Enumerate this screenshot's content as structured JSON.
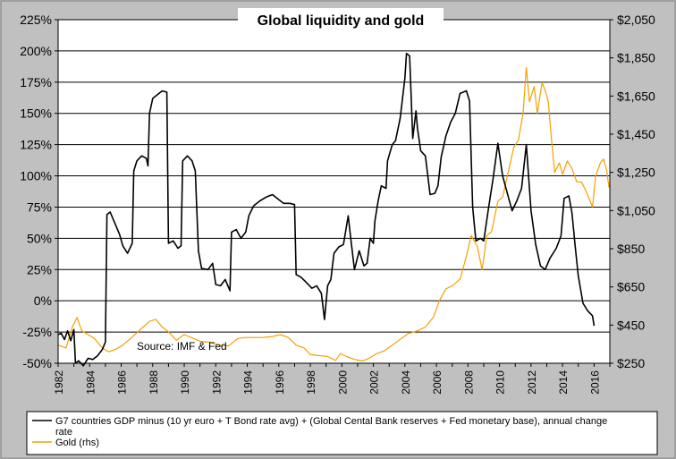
{
  "chart_data": {
    "type": "line",
    "title": "Global liquidity and gold",
    "source_note": "Source: IMF & Fed",
    "x_ticks": [
      "1982",
      "1984",
      "1986",
      "1988",
      "1990",
      "1992",
      "1994",
      "1996",
      "1998",
      "2000",
      "2002",
      "2004",
      "2006",
      "2008",
      "2010",
      "2012",
      "2014",
      "2016"
    ],
    "xlim": [
      1982,
      2017
    ],
    "left_axis": {
      "ylim": [
        -50,
        225
      ],
      "ticks": [
        -50,
        -25,
        0,
        25,
        50,
        75,
        100,
        125,
        150,
        175,
        200,
        225
      ],
      "tick_labels": [
        "-50%",
        "-25%",
        "0%",
        "25%",
        "50%",
        "75%",
        "100%",
        "125%",
        "150%",
        "175%",
        "200%",
        "225%"
      ]
    },
    "right_axis": {
      "ylim": [
        250,
        2050
      ],
      "ticks": [
        250,
        450,
        650,
        850,
        1050,
        1250,
        1450,
        1650,
        1850,
        2050
      ],
      "tick_labels": [
        "$250",
        "$450",
        "$650",
        "$850",
        "$1,050",
        "$1,250",
        "$1,450",
        "$1,650",
        "$1,850",
        "$2,050"
      ]
    },
    "colors": {
      "liquidity": "#000000",
      "gold": "#f5a000",
      "grid": "#000000",
      "plot_bg": "#ffffff",
      "frame_bg": "#c0c0c0"
    },
    "series": [
      {
        "name": "G7 countries GDP minus (10 yr euro + T Bond rate avg) + (Global Cental Bank reserves + Fed monetary base), annual change rate",
        "axis": "left",
        "points": [
          [
            1982.0,
            -27
          ],
          [
            1982.2,
            -26
          ],
          [
            1982.4,
            -31
          ],
          [
            1982.6,
            -24
          ],
          [
            1982.8,
            -32
          ],
          [
            1983.0,
            -23
          ],
          [
            1983.1,
            -50
          ],
          [
            1983.3,
            -48
          ],
          [
            1983.6,
            -52
          ],
          [
            1983.9,
            -46
          ],
          [
            1984.2,
            -47
          ],
          [
            1984.5,
            -44
          ],
          [
            1984.8,
            -39
          ],
          [
            1985.0,
            -33
          ],
          [
            1985.1,
            69
          ],
          [
            1985.3,
            71
          ],
          [
            1985.6,
            62
          ],
          [
            1985.9,
            53
          ],
          [
            1986.1,
            44
          ],
          [
            1986.4,
            38
          ],
          [
            1986.7,
            46
          ],
          [
            1986.8,
            104
          ],
          [
            1987.0,
            112
          ],
          [
            1987.3,
            116
          ],
          [
            1987.6,
            114
          ],
          [
            1987.7,
            108
          ],
          [
            1987.8,
            150
          ],
          [
            1988.0,
            162
          ],
          [
            1988.3,
            165
          ],
          [
            1988.6,
            168
          ],
          [
            1988.9,
            167
          ],
          [
            1989.0,
            46
          ],
          [
            1989.3,
            48
          ],
          [
            1989.6,
            42
          ],
          [
            1989.8,
            44
          ],
          [
            1989.9,
            112
          ],
          [
            1990.2,
            116
          ],
          [
            1990.5,
            112
          ],
          [
            1990.7,
            104
          ],
          [
            1990.9,
            40
          ],
          [
            1991.1,
            26
          ],
          [
            1991.5,
            25
          ],
          [
            1991.8,
            30
          ],
          [
            1992.0,
            13
          ],
          [
            1992.3,
            12
          ],
          [
            1992.6,
            17
          ],
          [
            1992.9,
            8
          ],
          [
            1993.0,
            55
          ],
          [
            1993.3,
            57
          ],
          [
            1993.6,
            50
          ],
          [
            1993.9,
            55
          ],
          [
            1994.1,
            68
          ],
          [
            1994.4,
            76
          ],
          [
            1994.8,
            80
          ],
          [
            1995.2,
            83
          ],
          [
            1995.6,
            85
          ],
          [
            1996.0,
            81
          ],
          [
            1996.3,
            78
          ],
          [
            1996.7,
            78
          ],
          [
            1997.0,
            77
          ],
          [
            1997.1,
            21
          ],
          [
            1997.4,
            19
          ],
          [
            1997.8,
            14
          ],
          [
            1998.1,
            10
          ],
          [
            1998.4,
            12
          ],
          [
            1998.7,
            6
          ],
          [
            1998.9,
            -15
          ],
          [
            1999.1,
            12
          ],
          [
            1999.3,
            17
          ],
          [
            1999.5,
            38
          ],
          [
            1999.8,
            43
          ],
          [
            2000.1,
            45
          ],
          [
            2000.4,
            68
          ],
          [
            2000.6,
            46
          ],
          [
            2000.8,
            25
          ],
          [
            2001.1,
            40
          ],
          [
            2001.4,
            28
          ],
          [
            2001.6,
            30
          ],
          [
            2001.8,
            50
          ],
          [
            2002.0,
            46
          ],
          [
            2002.1,
            64
          ],
          [
            2002.3,
            80
          ],
          [
            2002.5,
            92
          ],
          [
            2002.8,
            90
          ],
          [
            2002.9,
            112
          ],
          [
            2003.2,
            125
          ],
          [
            2003.4,
            128
          ],
          [
            2003.7,
            146
          ],
          [
            2004.0,
            178
          ],
          [
            2004.1,
            198
          ],
          [
            2004.3,
            196
          ],
          [
            2004.5,
            130
          ],
          [
            2004.7,
            152
          ],
          [
            2004.8,
            138
          ],
          [
            2005.0,
            120
          ],
          [
            2005.3,
            116
          ],
          [
            2005.6,
            85
          ],
          [
            2005.9,
            86
          ],
          [
            2006.1,
            92
          ],
          [
            2006.3,
            115
          ],
          [
            2006.6,
            132
          ],
          [
            2006.9,
            143
          ],
          [
            2007.2,
            150
          ],
          [
            2007.5,
            166
          ],
          [
            2007.9,
            168
          ],
          [
            2008.1,
            160
          ],
          [
            2008.3,
            75
          ],
          [
            2008.5,
            48
          ],
          [
            2008.8,
            50
          ],
          [
            2009.0,
            48
          ],
          [
            2009.3,
            74
          ],
          [
            2009.6,
            98
          ],
          [
            2009.9,
            126
          ],
          [
            2010.2,
            100
          ],
          [
            2010.5,
            86
          ],
          [
            2010.8,
            72
          ],
          [
            2011.1,
            80
          ],
          [
            2011.4,
            90
          ],
          [
            2011.7,
            125
          ],
          [
            2012.0,
            72
          ],
          [
            2012.3,
            45
          ],
          [
            2012.6,
            28
          ],
          [
            2012.9,
            25
          ],
          [
            2013.2,
            34
          ],
          [
            2013.6,
            42
          ],
          [
            2013.9,
            52
          ],
          [
            2014.1,
            82
          ],
          [
            2014.4,
            84
          ],
          [
            2014.6,
            70
          ],
          [
            2014.8,
            44
          ],
          [
            2015.0,
            20
          ],
          [
            2015.3,
            -2
          ],
          [
            2015.6,
            -8
          ],
          [
            2015.9,
            -12
          ],
          [
            2016.0,
            -20
          ]
        ]
      },
      {
        "name": "Gold (rhs)",
        "axis": "right",
        "points": [
          [
            1982.0,
            345
          ],
          [
            1982.5,
            330
          ],
          [
            1982.9,
            440
          ],
          [
            1983.2,
            490
          ],
          [
            1983.5,
            420
          ],
          [
            1983.9,
            400
          ],
          [
            1984.3,
            380
          ],
          [
            1984.8,
            330
          ],
          [
            1985.2,
            310
          ],
          [
            1985.7,
            325
          ],
          [
            1986.1,
            345
          ],
          [
            1986.6,
            380
          ],
          [
            1987.0,
            410
          ],
          [
            1987.4,
            440
          ],
          [
            1987.8,
            470
          ],
          [
            1988.2,
            480
          ],
          [
            1988.6,
            440
          ],
          [
            1989.0,
            415
          ],
          [
            1989.5,
            370
          ],
          [
            1990.0,
            400
          ],
          [
            1990.6,
            380
          ],
          [
            1991.0,
            365
          ],
          [
            1991.6,
            360
          ],
          [
            1992.2,
            345
          ],
          [
            1992.8,
            340
          ],
          [
            1993.4,
            380
          ],
          [
            1993.9,
            385
          ],
          [
            1994.5,
            385
          ],
          [
            1995.0,
            385
          ],
          [
            1995.6,
            390
          ],
          [
            1996.1,
            400
          ],
          [
            1996.6,
            385
          ],
          [
            1997.1,
            345
          ],
          [
            1997.6,
            330
          ],
          [
            1998.0,
            295
          ],
          [
            1998.6,
            290
          ],
          [
            1999.1,
            285
          ],
          [
            1999.6,
            265
          ],
          [
            1999.9,
            300
          ],
          [
            2000.3,
            285
          ],
          [
            2000.8,
            270
          ],
          [
            2001.3,
            262
          ],
          [
            2001.7,
            275
          ],
          [
            2002.2,
            300
          ],
          [
            2002.7,
            315
          ],
          [
            2003.2,
            345
          ],
          [
            2003.7,
            375
          ],
          [
            2004.2,
            405
          ],
          [
            2004.8,
            420
          ],
          [
            2005.3,
            440
          ],
          [
            2005.8,
            490
          ],
          [
            2006.2,
            580
          ],
          [
            2006.6,
            640
          ],
          [
            2007.0,
            655
          ],
          [
            2007.5,
            690
          ],
          [
            2007.9,
            810
          ],
          [
            2008.2,
            920
          ],
          [
            2008.6,
            860
          ],
          [
            2008.9,
            740
          ],
          [
            2009.2,
            920
          ],
          [
            2009.5,
            940
          ],
          [
            2009.9,
            1100
          ],
          [
            2010.2,
            1120
          ],
          [
            2010.5,
            1230
          ],
          [
            2010.9,
            1380
          ],
          [
            2011.2,
            1420
          ],
          [
            2011.5,
            1560
          ],
          [
            2011.7,
            1800
          ],
          [
            2011.9,
            1620
          ],
          [
            2012.2,
            1700
          ],
          [
            2012.4,
            1560
          ],
          [
            2012.7,
            1720
          ],
          [
            2012.9,
            1680
          ],
          [
            2013.1,
            1620
          ],
          [
            2013.3,
            1420
          ],
          [
            2013.5,
            1250
          ],
          [
            2013.8,
            1300
          ],
          [
            2014.0,
            1240
          ],
          [
            2014.3,
            1310
          ],
          [
            2014.6,
            1270
          ],
          [
            2014.9,
            1200
          ],
          [
            2015.2,
            1200
          ],
          [
            2015.5,
            1150
          ],
          [
            2015.9,
            1070
          ],
          [
            2016.1,
            1230
          ],
          [
            2016.4,
            1300
          ],
          [
            2016.6,
            1320
          ],
          [
            2016.8,
            1260
          ],
          [
            2016.95,
            1170
          ]
        ]
      }
    ]
  }
}
